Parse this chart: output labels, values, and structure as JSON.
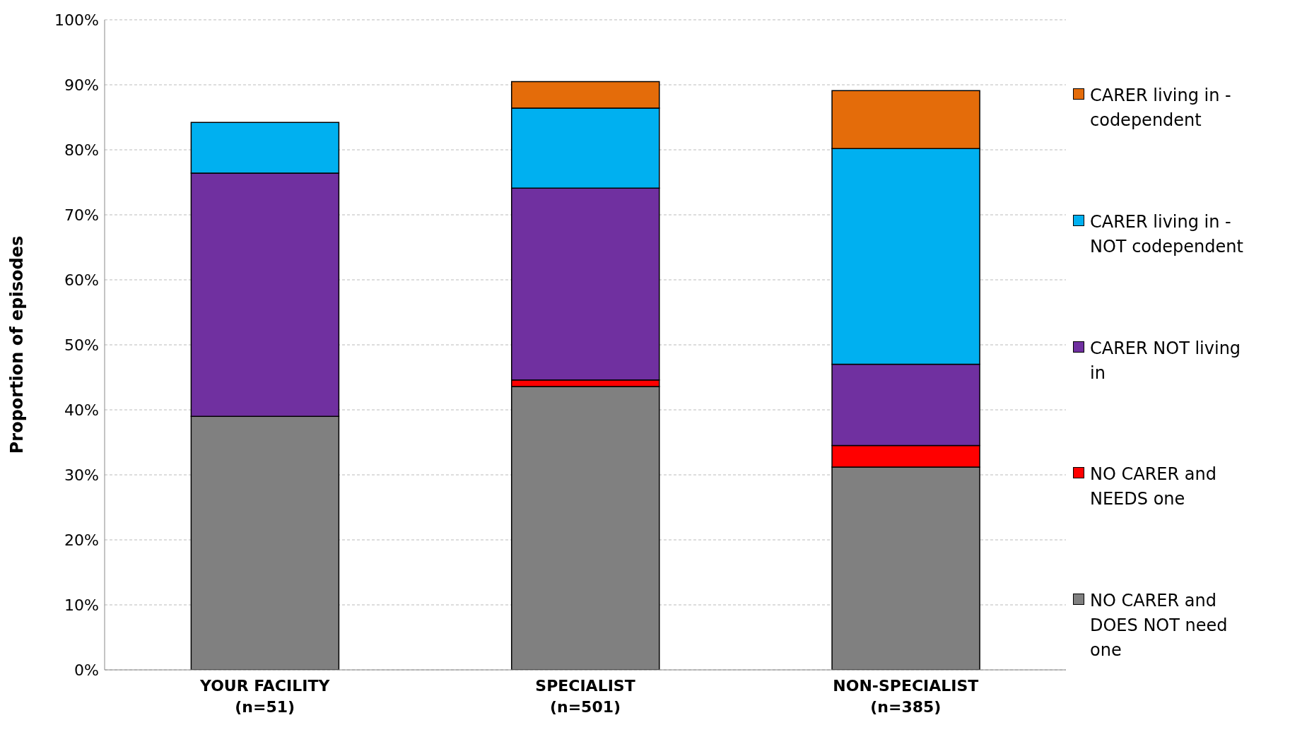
{
  "chart_data": {
    "type": "bar",
    "stacked": true,
    "ylabel": "Proportion of episodes",
    "categories": [
      "YOUR FACILITY\n(n=51)",
      "SPECIALIST\n(n=501)",
      "NON-SPECIALIST\n(n=385)"
    ],
    "series": [
      {
        "name": "NO CARER and DOES NOT need one",
        "color": "#808080",
        "values": [
          39.0,
          43.6,
          31.2
        ]
      },
      {
        "name": "NO CARER and NEEDS one",
        "color": "#ff0000",
        "values": [
          0,
          1.0,
          3.3
        ]
      },
      {
        "name": "CARER NOT living in",
        "color": "#7030a0",
        "values": [
          37.4,
          29.5,
          12.5
        ]
      },
      {
        "name": "CARER living in - NOT codependent",
        "color": "#00b0f0",
        "values": [
          7.8,
          12.3,
          33.2
        ]
      },
      {
        "name": "CARER living in - codependent",
        "color": "#e46c0a",
        "values": [
          0,
          4.1,
          8.9
        ]
      }
    ],
    "ylim": [
      0,
      100
    ],
    "yticks": [
      {
        "value": 0,
        "label": "0%"
      },
      {
        "value": 10,
        "label": "10%"
      },
      {
        "value": 20,
        "label": "20%"
      },
      {
        "value": 30,
        "label": "30%"
      },
      {
        "value": 40,
        "label": "40%"
      },
      {
        "value": 50,
        "label": "50%"
      },
      {
        "value": 60,
        "label": "60%"
      },
      {
        "value": 70,
        "label": "70%"
      },
      {
        "value": 80,
        "label": "80%"
      },
      {
        "value": 90,
        "label": "90%"
      },
      {
        "value": 100,
        "label": "100%"
      }
    ],
    "grid": "y",
    "legend": "right"
  }
}
